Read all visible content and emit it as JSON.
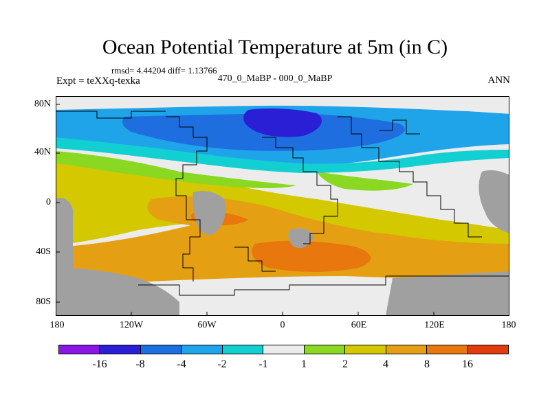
{
  "title": "Ocean Potential Temperature at 5m (in C)",
  "stats": "rmsd= 4.44204 diff= 1.13766",
  "expt": "Expt = teXXq-texka",
  "subtitle": "470_0_MaBP - 000_0_MaBP",
  "season": "ANN",
  "y_ticks": [
    "80N",
    "40N",
    "0",
    "40S",
    "80S"
  ],
  "x_ticks": [
    "180",
    "120W",
    "60W",
    "0",
    "60E",
    "120E",
    "180"
  ],
  "colors": {
    "land": "#a0a0a0",
    "neutral": "#ececec",
    "bins": [
      "#8a16e6",
      "#2b1fd6",
      "#1e6ee0",
      "#1fa4ea",
      "#12cfd2",
      "#ececec",
      "#8ad822",
      "#d4c800",
      "#e4a012",
      "#e8780e",
      "#e03c10"
    ]
  },
  "colorbar_labels": [
    "-16",
    "-8",
    "-4",
    "-2",
    "-1",
    "1",
    "2",
    "4",
    "8",
    "16"
  ]
}
